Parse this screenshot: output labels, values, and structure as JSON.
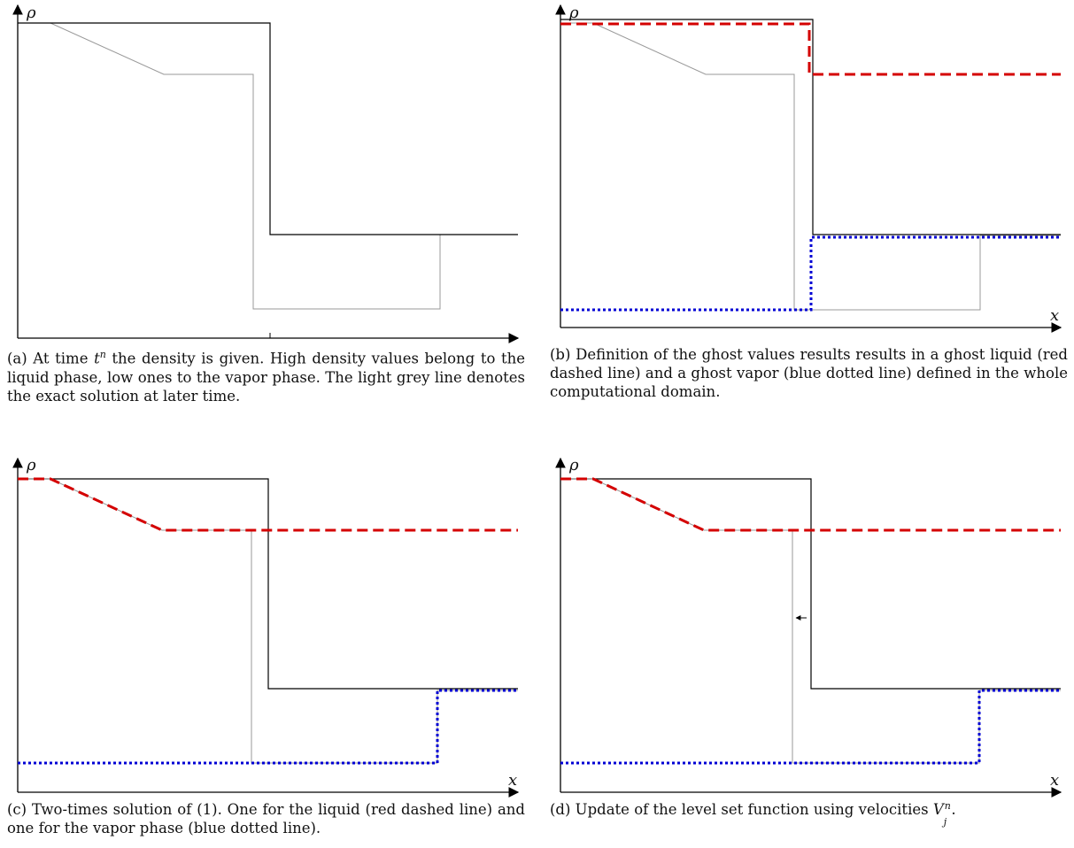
{
  "colors": {
    "axis": "#000000",
    "density": "#000000",
    "exact_solution": "#999999",
    "ghost_liquid": "#d40000",
    "ghost_vapor": "#0000d4"
  },
  "panels": [
    {
      "id": "a",
      "y_axis_label": "ρ",
      "x_axis_label": "",
      "caption": {
        "before": "(a) At time ",
        "var": "t",
        "sup": "n",
        "after": " the density is given.  High density values belong to the liquid phase, low ones to the vapor phase. The light grey line denotes the exact solution at later time."
      }
    },
    {
      "id": "b",
      "y_axis_label": "ρ",
      "x_axis_label": "x",
      "caption": {
        "text": "(b) Definition of the ghost values results results in a ghost liquid (red dashed line) and a ghost vapor (blue dotted line) defined in the whole computational domain."
      }
    },
    {
      "id": "c",
      "y_axis_label": "ρ",
      "x_axis_label": "x",
      "caption": {
        "text": "(c) Two-times solution of (1). One for the liquid (red dashed line) and one for the vapor phase (blue dotted line)."
      }
    },
    {
      "id": "d",
      "y_axis_label": "ρ",
      "x_axis_label": "x",
      "caption": {
        "before": "(d) Update of the level set function using velocities ",
        "var": "V",
        "sub": "j",
        "sup": "n",
        "after": "."
      }
    }
  ]
}
